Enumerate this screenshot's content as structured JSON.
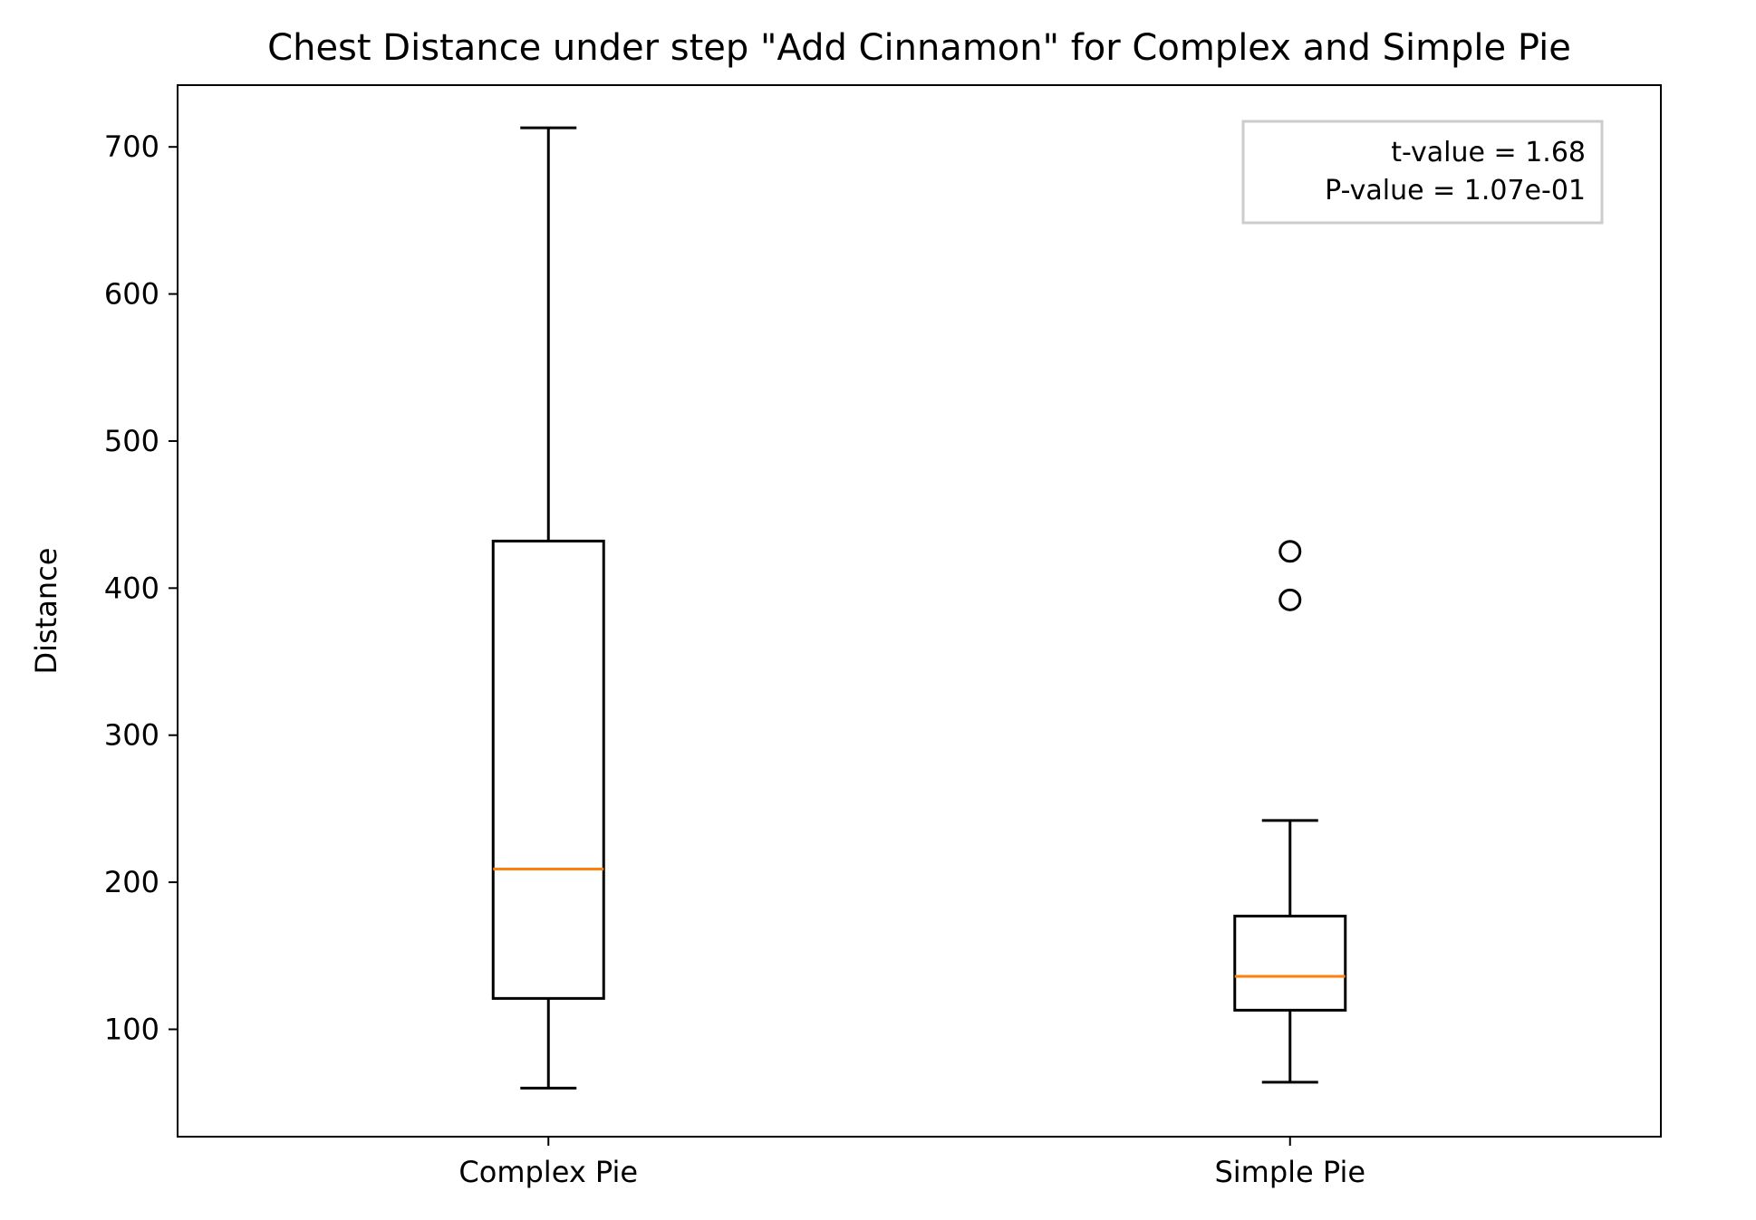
{
  "chart_data": {
    "type": "boxplot",
    "title": "Chest Distance under step \"Add Cinnamon\" for Complex and Simple Pie",
    "xlabel": "",
    "ylabel": "Distance",
    "ylim": [
      27,
      742
    ],
    "yticks": [
      100,
      200,
      300,
      400,
      500,
      600,
      700
    ],
    "categories": [
      "Complex Pie",
      "Simple Pie"
    ],
    "boxes": [
      {
        "category": "Complex Pie",
        "whisker_low": 60,
        "q1": 121,
        "median": 209,
        "q3": 432,
        "whisker_high": 713,
        "fliers": []
      },
      {
        "category": "Simple Pie",
        "whisker_low": 64,
        "q1": 113,
        "median": 136,
        "q3": 177,
        "whisker_high": 242,
        "fliers": [
          392,
          425
        ]
      }
    ],
    "annotation": {
      "lines": [
        "t-value = 1.68",
        "P-value = 1.07e-01"
      ],
      "placement": "top-right"
    },
    "grid": false,
    "colors": {
      "box": "#000000",
      "median": "#ff7f0e",
      "flier": "#000000",
      "annotation_border": "#cccccc",
      "background": "#ffffff"
    }
  }
}
